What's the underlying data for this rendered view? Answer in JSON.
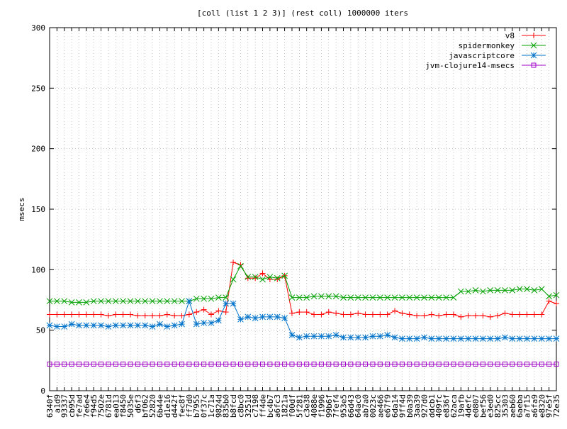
{
  "chart_data": {
    "type": "line",
    "title": "[coll (list 1 2 3)] (rest coll) 1000000 iters",
    "xlabel": "",
    "ylabel": "msecs",
    "ylim": [
      0,
      300
    ],
    "yticks": [
      0,
      50,
      100,
      150,
      200,
      250,
      300
    ],
    "grid": true,
    "legend_position": "top-right",
    "categories": [
      "6340f",
      "a1d9",
      "93337",
      "cb95d",
      "fe7ad",
      "7e6e4",
      "f94d5",
      "7502e",
      "6781d",
      "ea013",
      "f8450",
      "5035e",
      "d6f3",
      "bf062",
      "52820",
      "6b44e",
      "d1e16",
      "d442f",
      "fec8f",
      "ff7d0",
      "b7955",
      "0f37c",
      "1c71a",
      "9824d",
      "835b0",
      "b8fcd",
      "c8bc0",
      "3251d",
      "c7198",
      "ff4de",
      "bc4b7",
      "a6fc3",
      "1821a",
      "f00df",
      "5f281",
      "c3e38",
      "4088e",
      "f1996",
      "99b6f",
      "7fef4",
      "953e5",
      "66d43",
      "64ac0",
      "ab7a0",
      "0023c",
      "ae466",
      "e67f9",
      "6da14",
      "9ff4d",
      "b0a39",
      "3aa39",
      "927d0",
      "ddcb1",
      "409fc",
      "e836f",
      "62aca",
      "19afb",
      "4defc",
      "e0807",
      "bef56",
      "e3ed0",
      "825cc",
      "35303",
      "aeb60",
      "6aeba",
      "a7f15",
      "a6fa9",
      "e8320",
      "97e5f",
      "72e35"
    ],
    "series": [
      {
        "name": "v8",
        "color": "#ff0000",
        "marker": "plus",
        "values": [
          63,
          63,
          63,
          63,
          63,
          63,
          63,
          63,
          62,
          63,
          63,
          63,
          62,
          62,
          62,
          62,
          63,
          62,
          62,
          63,
          65,
          67,
          63,
          66,
          65,
          106,
          104,
          93,
          93,
          97,
          92,
          92,
          95,
          64,
          65,
          65,
          63,
          63,
          65,
          64,
          63,
          63,
          64,
          63,
          63,
          63,
          63,
          66,
          64,
          63,
          62,
          62,
          63,
          62,
          63,
          63,
          61,
          62,
          62,
          62,
          61,
          62,
          64,
          63,
          63,
          63,
          63,
          63,
          74,
          72
        ]
      },
      {
        "name": "spidermonkey",
        "color": "#00a000",
        "marker": "x",
        "values": [
          74,
          74,
          74,
          73,
          73,
          73,
          74,
          74,
          74,
          74,
          74,
          74,
          74,
          74,
          74,
          74,
          74,
          74,
          74,
          74,
          76,
          76,
          76,
          77,
          77,
          92,
          103,
          94,
          94,
          92,
          94,
          93,
          95,
          77,
          77,
          77,
          78,
          78,
          78,
          78,
          77,
          77,
          77,
          77,
          77,
          77,
          77,
          77,
          77,
          77,
          77,
          77,
          77,
          77,
          77,
          77,
          82,
          82,
          83,
          82,
          83,
          83,
          83,
          83,
          84,
          84,
          83,
          84,
          78,
          79
        ]
      },
      {
        "name": "javascriptcore",
        "color": "#0072c8",
        "marker": "star",
        "values": [
          54,
          53,
          53,
          55,
          54,
          54,
          54,
          54,
          53,
          54,
          54,
          54,
          54,
          54,
          53,
          55,
          53,
          54,
          55,
          74,
          55,
          56,
          56,
          58,
          72,
          72,
          59,
          61,
          60,
          61,
          61,
          61,
          60,
          46,
          44,
          45,
          45,
          45,
          45,
          46,
          44,
          44,
          44,
          44,
          45,
          45,
          46,
          44,
          43,
          43,
          43,
          44,
          43,
          43,
          43,
          43,
          43,
          43,
          43,
          43,
          43,
          43,
          44,
          43,
          43,
          43,
          43,
          43,
          43,
          43
        ]
      },
      {
        "name": "jvm-clojure14-msecs",
        "color": "#a000c8",
        "marker": "square",
        "values": [
          22,
          22,
          22,
          22,
          22,
          22,
          22,
          22,
          22,
          22,
          22,
          22,
          22,
          22,
          22,
          22,
          22,
          22,
          22,
          22,
          22,
          22,
          22,
          22,
          22,
          22,
          22,
          22,
          22,
          22,
          22,
          22,
          22,
          22,
          22,
          22,
          22,
          22,
          22,
          22,
          22,
          22,
          22,
          22,
          22,
          22,
          22,
          22,
          22,
          22,
          22,
          22,
          22,
          22,
          22,
          22,
          22,
          22,
          22,
          22,
          22,
          22,
          22,
          22,
          22,
          22,
          22,
          22,
          22,
          22
        ]
      }
    ]
  }
}
